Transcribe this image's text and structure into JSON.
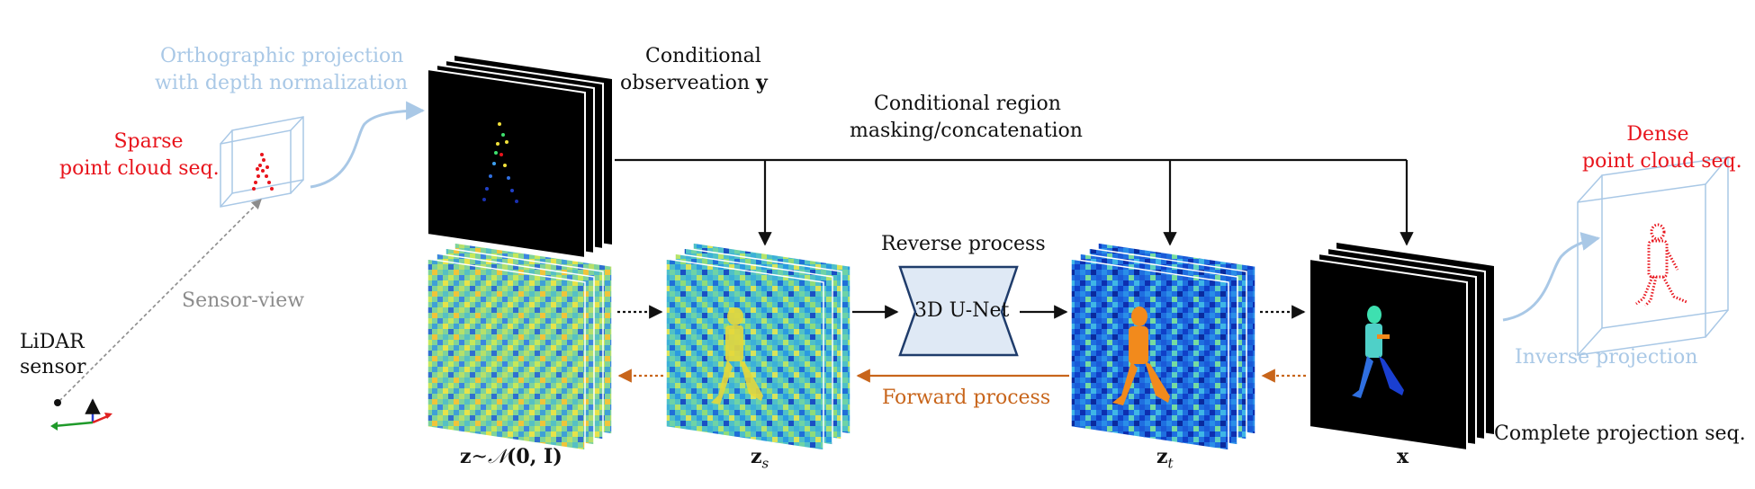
{
  "labels": {
    "ortho_line1": "Orthographic projection",
    "ortho_line2": "with depth normalization",
    "sparse_line1": "Sparse",
    "sparse_line2": "point cloud seq.",
    "lidar_line1": "LiDAR",
    "lidar_line2": "sensor",
    "sensor_view": "Sensor-view",
    "cond_obs_line1": "Conditional",
    "cond_obs_line2": "observeation ",
    "cond_obs_var": "y",
    "cond_region_line1": "Conditional region",
    "cond_region_line2": "masking/concatenation",
    "reverse": "Reverse process",
    "unet": "3D U-Net",
    "forward": "Forward process",
    "dense_line1": "Dense",
    "dense_line2": "point cloud seq.",
    "inverse": "Inverse projection",
    "complete": "Complete projection seq."
  },
  "math": {
    "z0_base": "z",
    "z0_rel": "~",
    "z0_dist": "𝒩",
    "z0_args": "(0, I)",
    "zs_base": "z",
    "zs_sub": "s",
    "zt_base": "z",
    "zt_sub": "t",
    "x": "x"
  },
  "colors": {
    "red": "#e8141c",
    "light_blue": "#a9c8e6",
    "brown": "#c8651b",
    "unet_fill": "#dfe9f5",
    "unet_stroke": "#1f3c6b"
  }
}
